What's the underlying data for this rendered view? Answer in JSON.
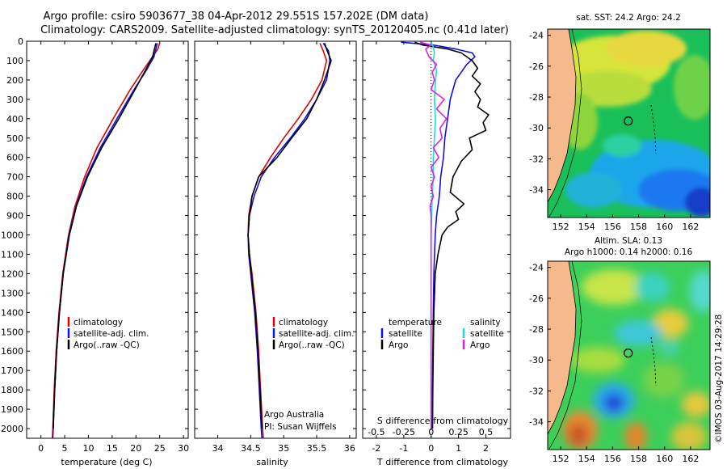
{
  "header": {
    "line1": "Argo profile: csiro 5903677_38 04-Apr-2012 29.551S 157.202E (DM data)",
    "line2": "Climatology: CARS2009. Satellite-adjusted climatology: synTS_20120405.nc (0.41d later)"
  },
  "colors": {
    "climatology": "#e00000",
    "satellite": "#1010e0",
    "argo": "#000000",
    "salinity_satellite": "#20d8e0",
    "salinity_argo": "#e020e0"
  },
  "chart_data": [
    {
      "type": "line",
      "id": "temperature",
      "xlabel": "temperature (deg C)",
      "ylabel": "",
      "xlim": [
        -3,
        31
      ],
      "ylim": [
        2050,
        0
      ],
      "xticks": [
        0,
        5,
        10,
        15,
        20,
        25,
        30
      ],
      "yticks": [
        0,
        100,
        200,
        300,
        400,
        500,
        600,
        700,
        800,
        900,
        1000,
        1100,
        1200,
        1300,
        1400,
        1500,
        1600,
        1700,
        1800,
        1900,
        2000
      ],
      "legend": [
        "climatology",
        "satellite-adj. clim.",
        "Argo(..raw -QC)"
      ],
      "series": [
        {
          "name": "climatology",
          "depth": [
            10,
            40,
            80,
            150,
            250,
            400,
            550,
            700,
            850,
            1000,
            1200,
            1400,
            1600,
            1800,
            2000,
            2050
          ],
          "values": [
            25.0,
            24.6,
            23.5,
            21.5,
            18.8,
            15.2,
            11.8,
            9.2,
            7.2,
            5.8,
            4.6,
            3.8,
            3.2,
            2.8,
            2.5,
            2.4
          ]
        },
        {
          "name": "satellite-adj. clim.",
          "depth": [
            10,
            40,
            80,
            150,
            250,
            400,
            550,
            700,
            850,
            1000,
            1200,
            1400,
            1600,
            1800,
            2000,
            2050
          ],
          "values": [
            24.5,
            24.2,
            23.8,
            22.2,
            19.6,
            16.0,
            12.5,
            9.6,
            7.4,
            5.9,
            4.7,
            3.9,
            3.3,
            2.9,
            2.6,
            2.5
          ]
        },
        {
          "name": "Argo(..raw -QC)",
          "depth": [
            10,
            40,
            80,
            150,
            250,
            400,
            550,
            700,
            850,
            1000,
            1200,
            1400,
            1600,
            1800,
            2000
          ],
          "values": [
            24.2,
            23.9,
            23.5,
            22.0,
            19.8,
            16.4,
            12.8,
            9.8,
            7.5,
            6.0,
            4.7,
            3.9,
            3.3,
            2.9,
            2.6
          ]
        }
      ]
    },
    {
      "type": "line",
      "id": "salinity",
      "xlabel": "salinity",
      "xlim": [
        33.65,
        36.1
      ],
      "ylim": [
        2050,
        0
      ],
      "xticks": [
        34,
        34.5,
        35,
        35.5,
        36
      ],
      "legend": [
        "climatology",
        "satellite-adj. clim.",
        "Argo(..raw -QC)"
      ],
      "annotation": [
        "Argo Australia",
        "PI: Susan Wijffels"
      ],
      "series": [
        {
          "name": "climatology",
          "depth": [
            10,
            50,
            100,
            200,
            300,
            400,
            500,
            600,
            700,
            800,
            900,
            1000,
            1100,
            1200,
            1400,
            1600,
            1800,
            2000,
            2050
          ],
          "values": [
            35.55,
            35.6,
            35.65,
            35.58,
            35.42,
            35.22,
            35.0,
            34.8,
            34.62,
            34.52,
            34.47,
            34.46,
            34.48,
            34.52,
            34.58,
            34.62,
            34.65,
            34.68,
            34.69
          ]
        },
        {
          "name": "satellite-adj. clim.",
          "depth": [
            10,
            50,
            100,
            200,
            300,
            400,
            500,
            600,
            700,
            800,
            900,
            1000,
            1100,
            1200,
            1400,
            1600,
            1800,
            2000,
            2050
          ],
          "values": [
            35.6,
            35.68,
            35.7,
            35.65,
            35.5,
            35.32,
            35.1,
            34.86,
            34.66,
            34.55,
            34.48,
            34.46,
            34.47,
            34.5,
            34.56,
            34.6,
            34.63,
            34.66,
            34.67
          ]
        },
        {
          "name": "Argo(..raw -QC)",
          "depth": [
            10,
            50,
            100,
            200,
            300,
            400,
            500,
            600,
            700,
            800,
            900,
            1000,
            1100,
            1200,
            1400,
            1600,
            1800,
            2000
          ],
          "values": [
            35.62,
            35.66,
            35.72,
            35.62,
            35.5,
            35.35,
            35.12,
            34.9,
            34.62,
            34.52,
            34.48,
            34.46,
            34.48,
            34.51,
            34.57,
            34.61,
            34.64,
            34.67
          ]
        }
      ]
    },
    {
      "type": "line",
      "id": "differences",
      "xlabel_bottom": "T difference from climatology",
      "xlabel_top": "S difference from climatology",
      "xlim": [
        -2.5,
        2.9
      ],
      "ylim": [
        2050,
        0
      ],
      "xticks": [
        -2,
        -1,
        0,
        1,
        2
      ],
      "xticks_top": [
        -0.5,
        -0.25,
        0,
        0.25,
        0.5
      ],
      "legend_temperature_header": "temperature",
      "legend_salinity_header": "salinity",
      "legend_temperature": [
        "satellite",
        "Argo"
      ],
      "legend_salinity": [
        "satellite",
        "Argo"
      ],
      "series": [
        {
          "name": "temperature satellite",
          "depth": [
            5,
            20,
            40,
            60,
            80,
            120,
            200,
            300,
            400,
            500,
            600,
            700,
            800,
            900,
            1000,
            1200,
            1400,
            1600,
            1800,
            2000
          ],
          "values": [
            -1.1,
            0.1,
            0.9,
            1.5,
            1.6,
            1.3,
            0.9,
            0.7,
            0.6,
            0.5,
            0.45,
            0.35,
            0.3,
            0.2,
            0.15,
            0.1,
            0.08,
            0.06,
            0.05,
            0.05
          ]
        },
        {
          "name": "temperature Argo",
          "depth": [
            5,
            20,
            40,
            60,
            100,
            140,
            180,
            220,
            260,
            300,
            340,
            380,
            420,
            460,
            500,
            560,
            620,
            700,
            780,
            840,
            880,
            920,
            960,
            1000,
            1100,
            1200,
            1400,
            1600,
            1800,
            2000
          ],
          "values": [
            -0.6,
            -0.3,
            0.6,
            1.1,
            1.5,
            1.7,
            1.5,
            1.8,
            1.6,
            1.8,
            1.7,
            2.1,
            1.9,
            2.0,
            1.4,
            1.5,
            1.1,
            0.8,
            0.7,
            1.2,
            0.9,
            1.0,
            0.6,
            0.4,
            0.25,
            0.15,
            0.1,
            0.08,
            0.06,
            0.05
          ]
        },
        {
          "name": "salinity satellite",
          "depth": [
            5,
            30,
            60,
            100,
            150,
            200,
            300,
            400,
            500,
            600,
            700,
            800,
            1000,
            1200,
            1400,
            1600,
            1800,
            2000
          ],
          "values": [
            0.0,
            0.02,
            0.03,
            0.02,
            0.05,
            0.04,
            0.03,
            0.04,
            0.03,
            0.02,
            0.02,
            0.01,
            0.0,
            0.0,
            0.0,
            0.0,
            0.0,
            0.0
          ]
        },
        {
          "name": "salinity Argo",
          "depth": [
            5,
            20,
            40,
            80,
            120,
            160,
            200,
            250,
            300,
            350,
            400,
            450,
            500,
            550,
            600,
            650,
            700,
            750,
            800,
            850,
            900,
            950,
            1000,
            1100,
            1200,
            1400,
            1600,
            1800,
            2000
          ],
          "values": [
            -0.1,
            0.0,
            -0.05,
            -0.02,
            0.05,
            0.01,
            0.03,
            0.0,
            0.12,
            0.05,
            0.14,
            0.08,
            0.1,
            0.02,
            0.07,
            0.0,
            0.03,
            0.0,
            0.02,
            -0.01,
            0.0,
            0.0,
            0.0,
            0.0,
            0.0,
            0.0,
            0.0,
            0.0,
            0.0
          ]
        }
      ]
    },
    {
      "type": "heatmap",
      "id": "sst_map",
      "title": "sat. SST: 24.2 Argo: 24.2",
      "xlim": [
        151,
        163.5
      ],
      "ylim": [
        -35.8,
        -23.6
      ],
      "xticks": [
        152,
        154,
        156,
        158,
        160,
        162
      ],
      "yticks": [
        -24,
        -26,
        -28,
        -30,
        -32,
        -34
      ],
      "marker": {
        "lon": 157.2,
        "lat": -29.55
      }
    },
    {
      "type": "heatmap",
      "id": "sla_map",
      "title_line1": "Altim. SLA: 0.13",
      "title_line2": "Argo h1000: 0.14 h2000: 0.16",
      "xlim": [
        151,
        163.5
      ],
      "ylim": [
        -35.8,
        -23.6
      ],
      "xticks": [
        152,
        154,
        156,
        158,
        160,
        162
      ],
      "yticks": [
        -24,
        -26,
        -28,
        -30,
        -32,
        -34
      ],
      "marker": {
        "lon": 157.2,
        "lat": -29.55
      }
    }
  ],
  "watermark": "©IMOS 03-Aug-2017 14:29:28"
}
